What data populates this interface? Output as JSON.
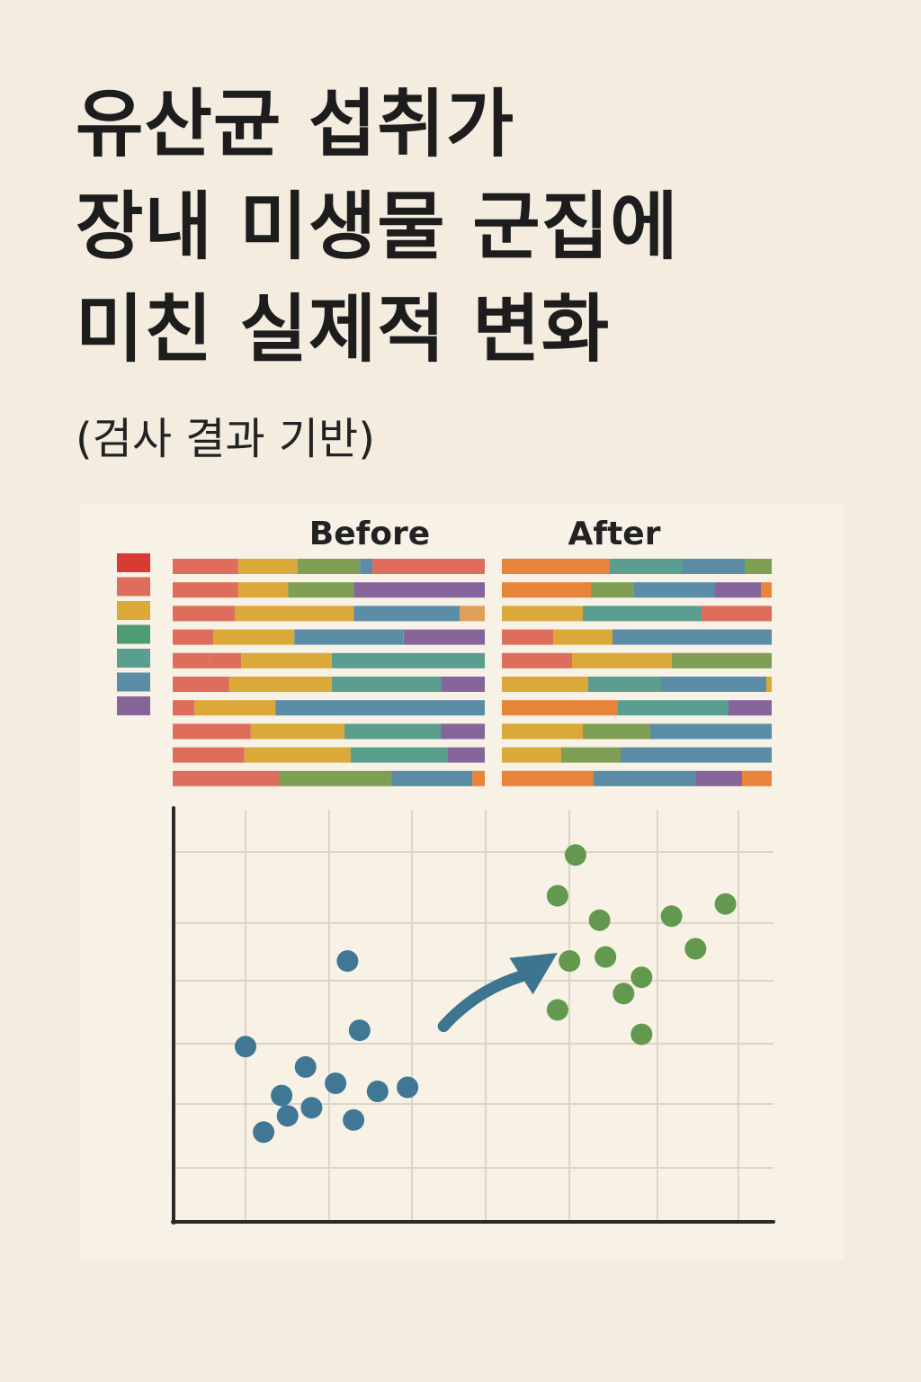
{
  "title_lines": [
    "유산균 섭취가",
    "장내 미생물 군집에",
    "미친 실제적 변화"
  ],
  "subtitle": "(검사 결과 기반)",
  "colors": {
    "red": "#d93a34",
    "coral": "#df6d5b",
    "orange": "#e8833a",
    "mustard": "#dba83a",
    "olive": "#7f9f54",
    "green": "#4e9a73",
    "teal": "#5a9e8f",
    "blue": "#5b8ea6",
    "purple": "#86659a",
    "peach": "#e0a05a",
    "before_point": "#3f7795",
    "after_point": "#62994f",
    "arrow": "#3d7590"
  },
  "chart_data": [
    {
      "type": "bar",
      "orientation": "horizontal",
      "stacked": true,
      "normalized": true,
      "title": "Before",
      "legend": {
        "placement": "left",
        "colors": [
          "red",
          "coral",
          "mustard",
          "green",
          "teal",
          "blue",
          "purple"
        ]
      },
      "rows": [
        [
          {
            "c": "coral",
            "v": 0.21
          },
          {
            "c": "mustard",
            "v": 0.19
          },
          {
            "c": "olive",
            "v": 0.2
          },
          {
            "c": "blue",
            "v": 0.04
          },
          {
            "c": "coral",
            "v": 0.36
          }
        ],
        [
          {
            "c": "coral",
            "v": 0.21
          },
          {
            "c": "mustard",
            "v": 0.16
          },
          {
            "c": "olive",
            "v": 0.21
          },
          {
            "c": "purple",
            "v": 0.42
          }
        ],
        [
          {
            "c": "coral",
            "v": 0.2
          },
          {
            "c": "mustard",
            "v": 0.38
          },
          {
            "c": "blue",
            "v": 0.34
          },
          {
            "c": "peach",
            "v": 0.08
          }
        ],
        [
          {
            "c": "coral",
            "v": 0.13
          },
          {
            "c": "mustard",
            "v": 0.26
          },
          {
            "c": "blue",
            "v": 0.35
          },
          {
            "c": "purple",
            "v": 0.26
          }
        ],
        [
          {
            "c": "coral",
            "v": 0.12
          },
          {
            "c": "coral",
            "v": 0.1
          },
          {
            "c": "mustard",
            "v": 0.29
          },
          {
            "c": "teal",
            "v": 0.49
          }
        ],
        [
          {
            "c": "coral",
            "v": 0.18
          },
          {
            "c": "mustard",
            "v": 0.33
          },
          {
            "c": "teal",
            "v": 0.35
          },
          {
            "c": "purple",
            "v": 0.14
          }
        ],
        [
          {
            "c": "coral",
            "v": 0.07
          },
          {
            "c": "mustard",
            "v": 0.26
          },
          {
            "c": "blue",
            "v": 0.67
          }
        ],
        [
          {
            "c": "coral",
            "v": 0.25
          },
          {
            "c": "mustard",
            "v": 0.3
          },
          {
            "c": "teal",
            "v": 0.31
          },
          {
            "c": "purple",
            "v": 0.14
          }
        ],
        [
          {
            "c": "coral",
            "v": 0.23
          },
          {
            "c": "mustard",
            "v": 0.34
          },
          {
            "c": "teal",
            "v": 0.31
          },
          {
            "c": "purple",
            "v": 0.12
          }
        ],
        [
          {
            "c": "coral",
            "v": 0.34
          },
          {
            "c": "olive",
            "v": 0.36
          },
          {
            "c": "blue",
            "v": 0.26
          },
          {
            "c": "orange",
            "v": 0.04
          }
        ]
      ]
    },
    {
      "type": "bar",
      "orientation": "horizontal",
      "stacked": true,
      "normalized": true,
      "title": "After",
      "rows": [
        [
          {
            "c": "orange",
            "v": 0.4
          },
          {
            "c": "teal",
            "v": 0.27
          },
          {
            "c": "blue",
            "v": 0.23
          },
          {
            "c": "olive",
            "v": 0.1
          }
        ],
        [
          {
            "c": "orange",
            "v": 0.33
          },
          {
            "c": "olive",
            "v": 0.16
          },
          {
            "c": "blue",
            "v": 0.3
          },
          {
            "c": "purple",
            "v": 0.17
          },
          {
            "c": "orange",
            "v": 0.04
          }
        ],
        [
          {
            "c": "mustard",
            "v": 0.3
          },
          {
            "c": "teal",
            "v": 0.44
          },
          {
            "c": "coral",
            "v": 0.26
          }
        ],
        [
          {
            "c": "coral",
            "v": 0.19
          },
          {
            "c": "mustard",
            "v": 0.22
          },
          {
            "c": "blue",
            "v": 0.59
          }
        ],
        [
          {
            "c": "coral",
            "v": 0.26
          },
          {
            "c": "mustard",
            "v": 0.37
          },
          {
            "c": "olive",
            "v": 0.37
          }
        ],
        [
          {
            "c": "mustard",
            "v": 0.32
          },
          {
            "c": "teal",
            "v": 0.27
          },
          {
            "c": "blue",
            "v": 0.39
          },
          {
            "c": "mustard",
            "v": 0.02
          }
        ],
        [
          {
            "c": "orange",
            "v": 0.43
          },
          {
            "c": "teal",
            "v": 0.41
          },
          {
            "c": "purple",
            "v": 0.16
          }
        ],
        [
          {
            "c": "mustard",
            "v": 0.3
          },
          {
            "c": "olive",
            "v": 0.25
          },
          {
            "c": "blue",
            "v": 0.45
          }
        ],
        [
          {
            "c": "mustard",
            "v": 0.22
          },
          {
            "c": "olive",
            "v": 0.22
          },
          {
            "c": "blue",
            "v": 0.56
          }
        ],
        [
          {
            "c": "orange",
            "v": 0.34
          },
          {
            "c": "blue",
            "v": 0.38
          },
          {
            "c": "purple",
            "v": 0.17
          },
          {
            "c": "orange",
            "v": 0.11
          }
        ]
      ]
    },
    {
      "type": "scatter",
      "grid": true,
      "xlim": [
        0,
        10
      ],
      "ylim": [
        0,
        10
      ],
      "series": [
        {
          "color": "before_point",
          "points": [
            [
              1.2,
              4.3
            ],
            [
              2.2,
              3.8
            ],
            [
              2.9,
              6.4
            ],
            [
              3.1,
              4.7
            ],
            [
              1.8,
              3.1
            ],
            [
              3.4,
              3.2
            ],
            [
              2.3,
              2.8
            ],
            [
              2.7,
              3.4
            ],
            [
              3.9,
              3.3
            ],
            [
              1.9,
              2.6
            ],
            [
              3.0,
              2.5
            ],
            [
              1.5,
              2.2
            ]
          ]
        },
        {
          "color": "after_point",
          "points": [
            [
              6.7,
              9.0
            ],
            [
              6.4,
              8.0
            ],
            [
              7.1,
              7.4
            ],
            [
              8.3,
              7.5
            ],
            [
              9.2,
              7.8
            ],
            [
              7.2,
              6.5
            ],
            [
              6.6,
              6.4
            ],
            [
              8.7,
              6.7
            ],
            [
              7.8,
              6.0
            ],
            [
              7.5,
              5.6
            ],
            [
              6.4,
              5.2
            ],
            [
              7.8,
              4.6
            ]
          ]
        }
      ],
      "arrow": {
        "from": [
          4.5,
          4.8
        ],
        "to": [
          6.4,
          6.6
        ]
      }
    }
  ]
}
